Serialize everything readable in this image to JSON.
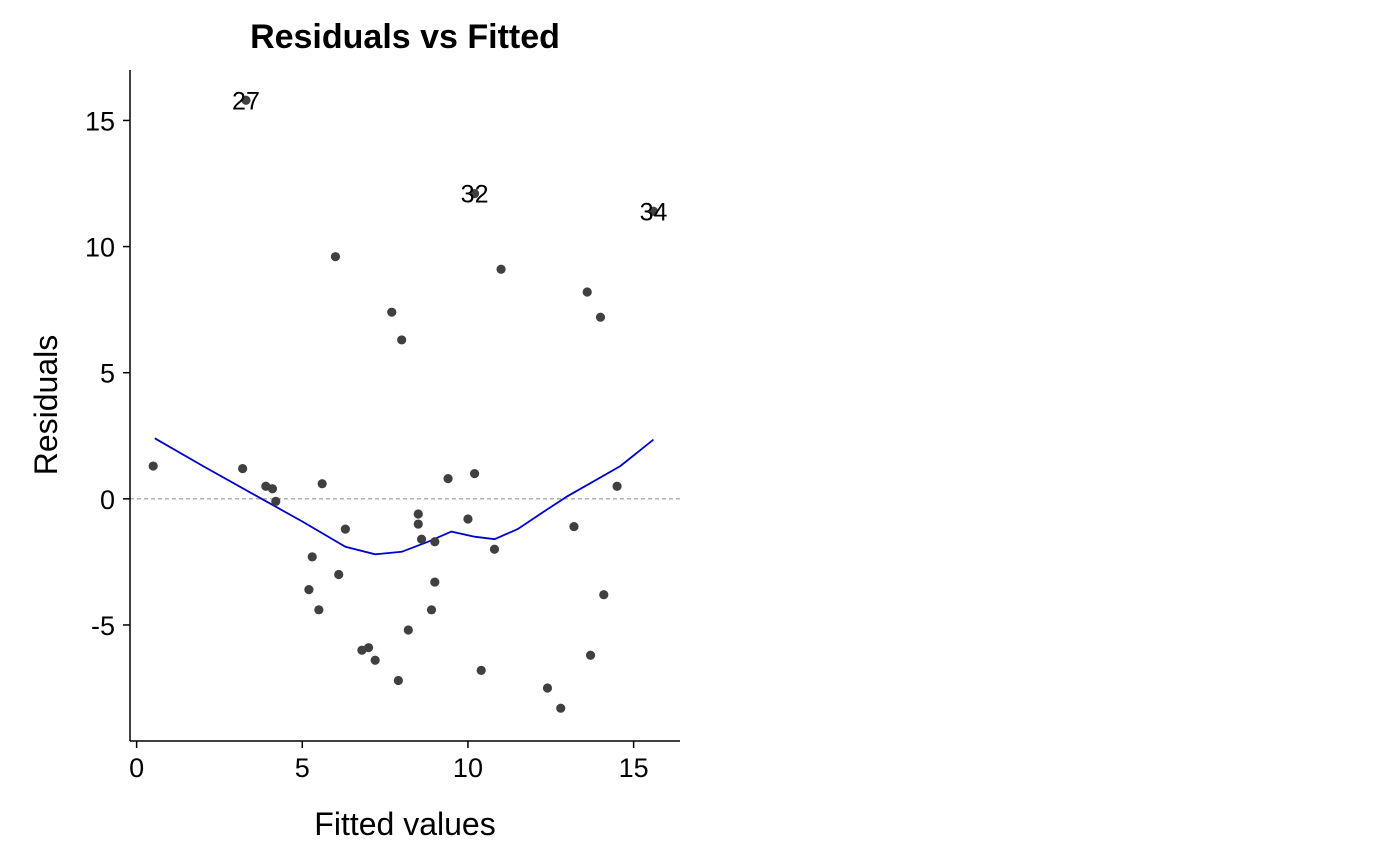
{
  "chart_data": {
    "type": "scatter",
    "title": "Residuals vs Fitted",
    "xlabel": "Fitted values",
    "ylabel": "Residuals",
    "xlim": [
      -0.2,
      16.4
    ],
    "ylim": [
      -9.6,
      17.0
    ],
    "x_ticks": [
      0,
      5,
      10,
      15
    ],
    "y_ticks": [
      -5,
      0,
      5,
      10,
      15
    ],
    "x_tick_labels": [
      "0",
      "5",
      "10",
      "15"
    ],
    "y_tick_labels": [
      "-5",
      "0",
      "5",
      "10",
      "15"
    ],
    "grid": false,
    "legend": "none",
    "reference_line_y": 0,
    "points": [
      {
        "x": 0.5,
        "y": 1.3
      },
      {
        "x": 3.2,
        "y": 1.2
      },
      {
        "x": 3.3,
        "y": 15.8,
        "label": "27"
      },
      {
        "x": 3.9,
        "y": 0.5
      },
      {
        "x": 4.1,
        "y": 0.4
      },
      {
        "x": 4.2,
        "y": -0.1
      },
      {
        "x": 5.2,
        "y": -3.6
      },
      {
        "x": 5.3,
        "y": -2.3
      },
      {
        "x": 5.5,
        "y": -4.4
      },
      {
        "x": 5.6,
        "y": 0.6
      },
      {
        "x": 6.0,
        "y": 9.6
      },
      {
        "x": 6.1,
        "y": -3.0
      },
      {
        "x": 6.3,
        "y": -1.2
      },
      {
        "x": 6.8,
        "y": -6.0
      },
      {
        "x": 7.0,
        "y": -5.9
      },
      {
        "x": 7.2,
        "y": -6.4
      },
      {
        "x": 7.7,
        "y": 7.4
      },
      {
        "x": 7.9,
        "y": -7.2
      },
      {
        "x": 8.0,
        "y": 6.3
      },
      {
        "x": 8.2,
        "y": -5.2
      },
      {
        "x": 8.5,
        "y": -0.6
      },
      {
        "x": 8.5,
        "y": -1.0
      },
      {
        "x": 8.6,
        "y": -1.6
      },
      {
        "x": 8.9,
        "y": -4.4
      },
      {
        "x": 9.0,
        "y": -3.3
      },
      {
        "x": 9.0,
        "y": -1.7
      },
      {
        "x": 9.4,
        "y": 0.8
      },
      {
        "x": 10.0,
        "y": -0.8
      },
      {
        "x": 10.2,
        "y": 12.1,
        "label": "32"
      },
      {
        "x": 10.2,
        "y": 1.0
      },
      {
        "x": 10.4,
        "y": -6.8
      },
      {
        "x": 10.8,
        "y": -2.0
      },
      {
        "x": 11.0,
        "y": 9.1
      },
      {
        "x": 12.4,
        "y": -7.5
      },
      {
        "x": 12.8,
        "y": -8.3
      },
      {
        "x": 13.2,
        "y": -1.1
      },
      {
        "x": 13.6,
        "y": 8.2
      },
      {
        "x": 13.7,
        "y": -6.2
      },
      {
        "x": 14.0,
        "y": 7.2
      },
      {
        "x": 14.1,
        "y": -3.8
      },
      {
        "x": 14.5,
        "y": 0.5
      },
      {
        "x": 15.6,
        "y": 11.4,
        "label": "34"
      }
    ],
    "smoother": {
      "x": [
        0.55,
        2.0,
        3.5,
        5.0,
        6.3,
        7.2,
        8.0,
        8.8,
        9.5,
        10.2,
        10.8,
        11.5,
        12.3,
        13.0,
        13.8,
        14.6,
        15.6
      ],
      "y": [
        2.4,
        1.3,
        0.2,
        -0.9,
        -1.9,
        -2.2,
        -2.1,
        -1.7,
        -1.3,
        -1.5,
        -1.6,
        -1.2,
        -0.5,
        0.1,
        0.7,
        1.3,
        2.35
      ]
    },
    "colors": {
      "points": "#404040",
      "smoother": "#0000cc",
      "reference_line": "#999999",
      "axis": "#000000"
    }
  }
}
